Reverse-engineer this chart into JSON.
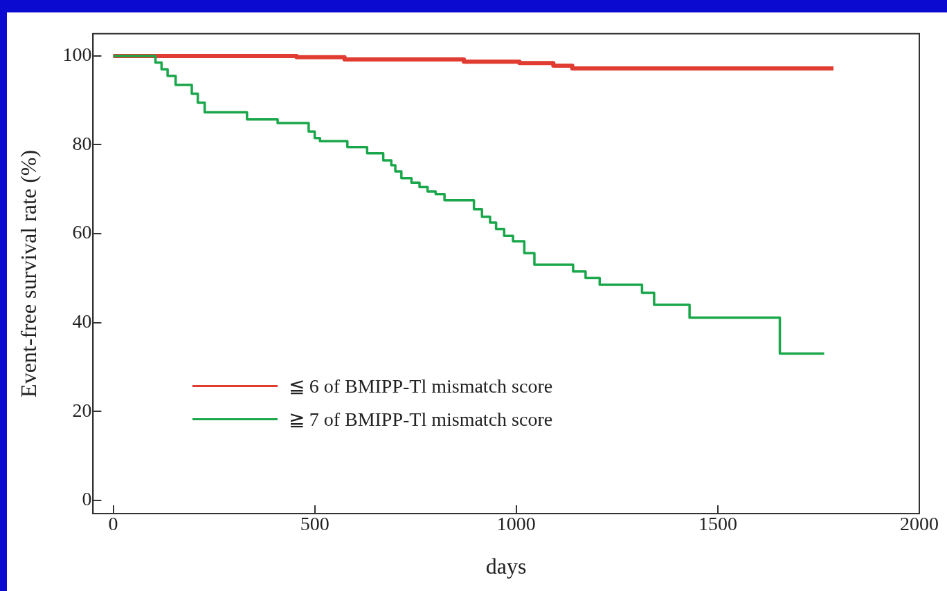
{
  "chart_data": {
    "type": "step",
    "xlabel": "days",
    "ylabel": "Event-free survival rate (%)",
    "xlim": [
      -50,
      2000
    ],
    "xticks": [
      0,
      500,
      1000,
      1500,
      2000
    ],
    "ylim": [
      -3,
      105
    ],
    "yticks": [
      0,
      20,
      40,
      60,
      80,
      100
    ],
    "grid": false,
    "legend": "bottom left",
    "line_style": "solid",
    "marker": "none",
    "series": [
      {
        "name": "≦ 6 of BMIPP-Tl mismatch score",
        "color": "#e03c31",
        "x": [
          0,
          455,
          574,
          870,
          1008,
          1092,
          1139,
          1787
        ],
        "values": [
          100,
          99.7,
          99.2,
          98.7,
          98.4,
          97.8,
          97.2,
          97.2
        ]
      },
      {
        "name": "≧ 7 of BMIPP-Tl mismatch score",
        "color": "#1aa64a",
        "x": [
          0,
          91,
          105,
          120,
          135,
          155,
          180,
          195,
          210,
          227,
          332,
          408,
          485,
          500,
          513,
          581,
          630,
          670,
          690,
          700,
          715,
          740,
          760,
          780,
          800,
          822,
          880,
          895,
          915,
          935,
          950,
          970,
          992,
          1020,
          1045,
          1141,
          1172,
          1207,
          1312,
          1342,
          1430,
          1654,
          1764
        ],
        "values": [
          100,
          100,
          98.5,
          97,
          95.5,
          93.5,
          93.5,
          91.5,
          89.5,
          87.3,
          85.7,
          84.9,
          83,
          81.5,
          80.8,
          79.5,
          78.1,
          76.5,
          75.4,
          74,
          72.5,
          71.5,
          70.5,
          69.5,
          68.9,
          67.5,
          67.5,
          65.5,
          63.8,
          62.5,
          61,
          59.5,
          58.3,
          55.6,
          53,
          51.5,
          50,
          48.5,
          46.7,
          44,
          41.1,
          33,
          33
        ]
      }
    ]
  }
}
